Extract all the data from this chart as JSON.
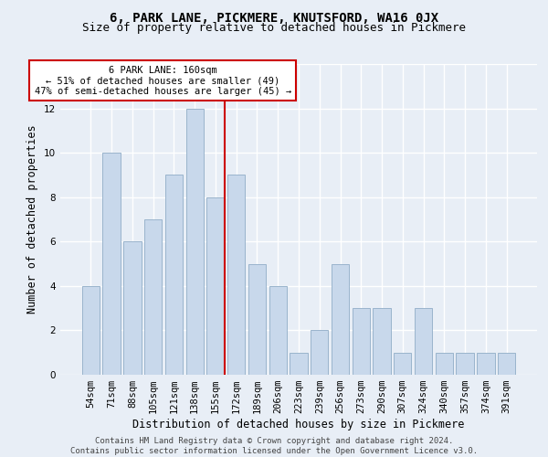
{
  "title": "6, PARK LANE, PICKMERE, KNUTSFORD, WA16 0JX",
  "subtitle": "Size of property relative to detached houses in Pickmere",
  "xlabel": "Distribution of detached houses by size in Pickmere",
  "ylabel": "Number of detached properties",
  "bar_labels": [
    "54sqm",
    "71sqm",
    "88sqm",
    "105sqm",
    "121sqm",
    "138sqm",
    "155sqm",
    "172sqm",
    "189sqm",
    "206sqm",
    "223sqm",
    "239sqm",
    "256sqm",
    "273sqm",
    "290sqm",
    "307sqm",
    "324sqm",
    "340sqm",
    "357sqm",
    "374sqm",
    "391sqm"
  ],
  "bar_values": [
    4,
    10,
    6,
    7,
    9,
    12,
    8,
    9,
    5,
    4,
    1,
    2,
    5,
    3,
    3,
    1,
    3,
    1,
    1,
    1,
    1
  ],
  "bar_color": "#c8d8eb",
  "bar_edge_color": "#9ab4cc",
  "bg_color": "#e8eef6",
  "grid_color": "#ffffff",
  "vline_color": "#cc0000",
  "annotation_text": "6 PARK LANE: 160sqm\n← 51% of detached houses are smaller (49)\n47% of semi-detached houses are larger (45) →",
  "annotation_box_color": "#ffffff",
  "annotation_box_edge": "#cc0000",
  "ylim": [
    0,
    14
  ],
  "yticks": [
    0,
    2,
    4,
    6,
    8,
    10,
    12,
    14
  ],
  "footer": "Contains HM Land Registry data © Crown copyright and database right 2024.\nContains public sector information licensed under the Open Government Licence v3.0.",
  "title_fontsize": 10,
  "subtitle_fontsize": 9,
  "xlabel_fontsize": 8.5,
  "ylabel_fontsize": 8.5,
  "tick_fontsize": 7.5,
  "annotation_fontsize": 7.5,
  "footer_fontsize": 6.5
}
